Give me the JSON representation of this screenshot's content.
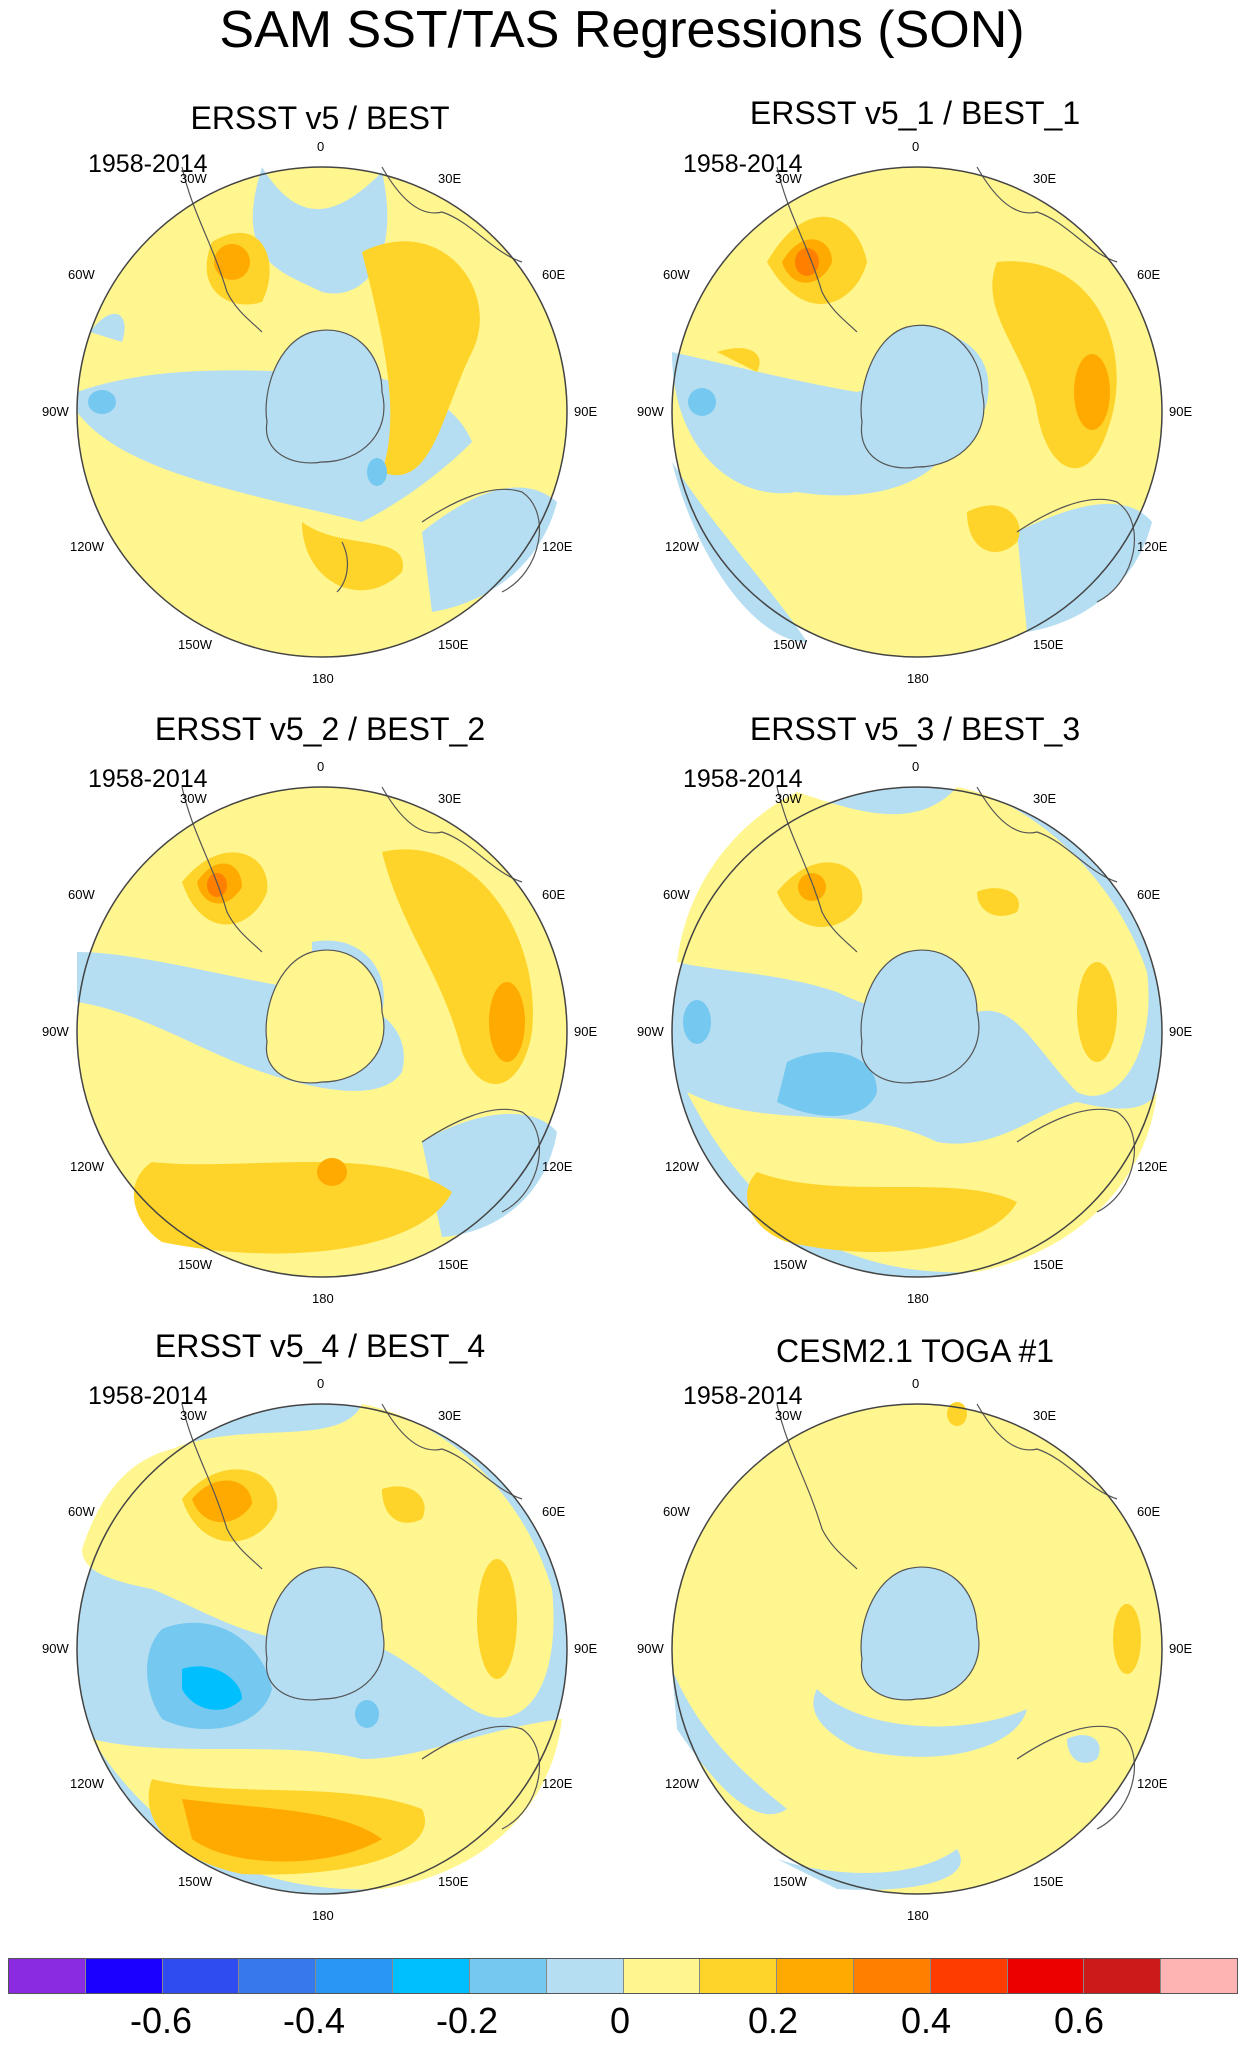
{
  "title": "SAM SST/TAS Regressions (SON)",
  "period": "1958-2014",
  "longitude_labels": [
    "0",
    "30E",
    "60E",
    "90E",
    "120E",
    "150E",
    "180",
    "150W",
    "120W",
    "90W",
    "60W",
    "30W"
  ],
  "panels": [
    {
      "title": "ERSST v5 / BEST",
      "period": "1958-2014"
    },
    {
      "title": "ERSST v5_1 / BEST_1",
      "period": "1958-2014"
    },
    {
      "title": "ERSST v5_2 / BEST_2",
      "period": "1958-2014"
    },
    {
      "title": "ERSST v5_3 / BEST_3",
      "period": "1958-2014"
    },
    {
      "title": "ERSST v5_4 / BEST_4",
      "period": "1958-2014"
    },
    {
      "title": "CESM2.1 TOGA #1",
      "period": "1958-2014"
    }
  ],
  "colorbar": {
    "colors": [
      "#8a2be2",
      "#1b00ff",
      "#2e4cf0",
      "#3779ec",
      "#2996f5",
      "#00bfff",
      "#75c8ef",
      "#b5def2",
      "#fff68f",
      "#ffd42a",
      "#ffaa00",
      "#ff7f00",
      "#ff3c00",
      "#ec0000",
      "#cc1a1a",
      "#ffb4b4"
    ],
    "labels": [
      "-0.6",
      "-0.4",
      "-0.2",
      "0",
      "0.2",
      "0.4",
      "0.6"
    ]
  },
  "palette": {
    "ocean_neg": "#b5def2",
    "neg2": "#75c8ef",
    "neg3": "#00bfff",
    "pos1": "#fff68f",
    "pos2": "#ffd42a",
    "pos3": "#ffaa00",
    "pos4": "#ff7f00",
    "land": "#ffffff",
    "coast": "#555555"
  }
}
